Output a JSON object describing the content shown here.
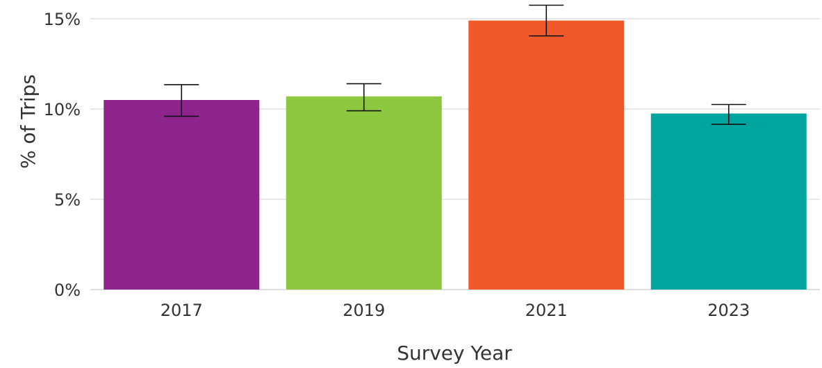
{
  "chart_data": {
    "type": "bar",
    "title": "",
    "xlabel": "Survey Year",
    "ylabel": "% of Trips",
    "categories": [
      "2017",
      "2019",
      "2021",
      "2023"
    ],
    "values": [
      10.5,
      10.7,
      14.9,
      9.75
    ],
    "error_low": [
      9.6,
      9.9,
      14.05,
      9.15
    ],
    "error_high": [
      11.35,
      11.4,
      15.75,
      10.25
    ],
    "bar_colors": [
      "#8e258c",
      "#8dc63f",
      "#f05a2a",
      "#00a59f"
    ],
    "ylim": [
      0,
      15.5
    ],
    "yticks": [
      0,
      5,
      10,
      15
    ],
    "ytick_labels": [
      "0%",
      "5%",
      "10%",
      "15%"
    ],
    "grid": true,
    "legend": "none"
  }
}
